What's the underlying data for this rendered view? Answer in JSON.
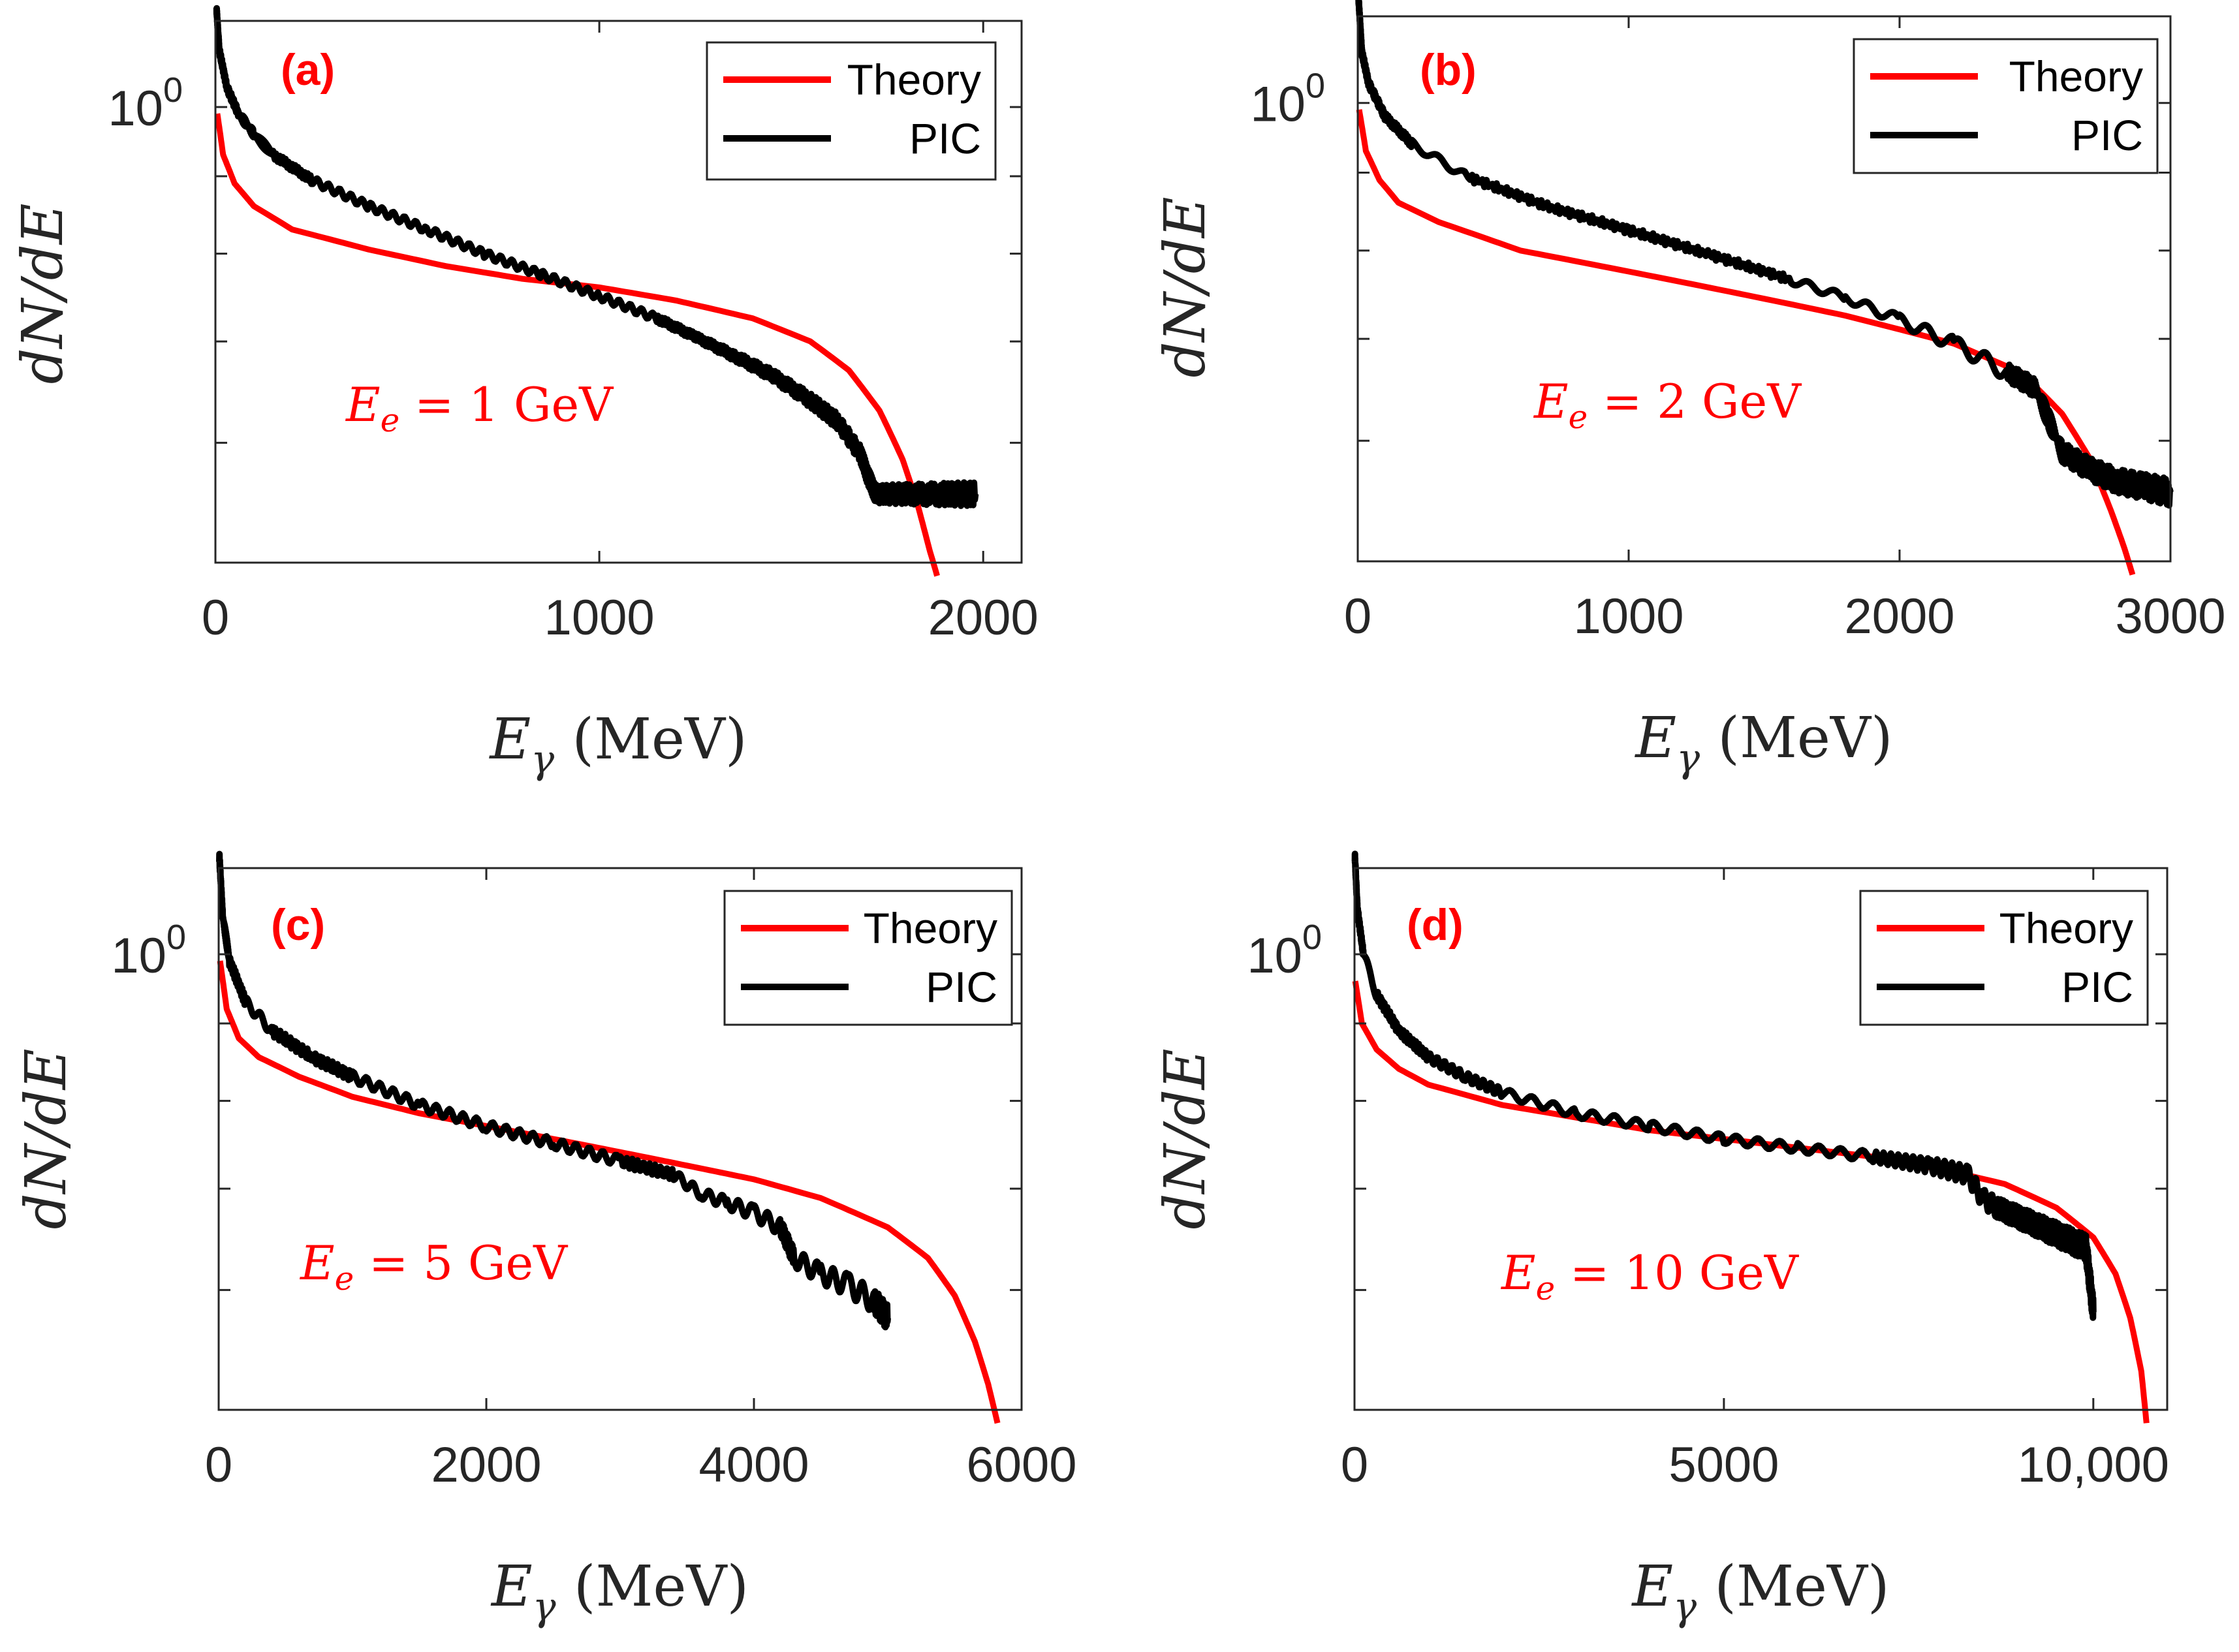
{
  "figure": {
    "label": "Photon spectra dN/dE vs E_gamma: Theory vs PIC for four electron energies",
    "colors": {
      "theory": "#ff0000",
      "pic": "#000000",
      "axis": "#262626",
      "annotation": "#ff0000"
    }
  },
  "chart_data": [
    {
      "type": "line",
      "panel_label": "(a)",
      "annotation": {
        "main": "E",
        "sub": "e",
        "rest": " = 1 GeV"
      },
      "xlabel": {
        "main": "E",
        "sub": "γ",
        "unit": " (MeV)"
      },
      "ylabel": "dN/dE",
      "y_scale": "log",
      "xlim": [
        0,
        2100
      ],
      "ylim": [
        0.5,
        1.14
      ],
      "x_ticks": [
        0,
        1000,
        2000
      ],
      "x_tick_labels": [
        "0",
        "1000",
        "2000"
      ],
      "y_tick_values": [
        0.5,
        0.6,
        0.7,
        0.8,
        0.9,
        1.0
      ],
      "y_tick_label": {
        "base": "10",
        "exp": "0"
      },
      "y_tick_label_value": 1.0,
      "legend": [
        {
          "name": "Theory"
        },
        {
          "name": "PIC"
        }
      ],
      "legend_position": "top-right",
      "series": [
        {
          "name": "Theory",
          "color": "#ff0000",
          "x": [
            5,
            20,
            50,
            100,
            200,
            400,
            600,
            800,
            1000,
            1200,
            1400,
            1550,
            1650,
            1730,
            1790,
            1830,
            1860,
            1880
          ],
          "y": [
            0.99,
            0.93,
            0.89,
            0.86,
            0.83,
            0.805,
            0.785,
            0.77,
            0.76,
            0.745,
            0.725,
            0.7,
            0.67,
            0.63,
            0.585,
            0.545,
            0.51,
            0.49
          ]
        },
        {
          "name": "PIC",
          "color": "#000000",
          "noise": 0.006,
          "x": [
            3,
            10,
            30,
            60,
            100,
            150,
            250,
            400,
            550,
            700,
            850,
            1000,
            1150,
            1250,
            1350,
            1450,
            1550,
            1620,
            1680,
            1700,
            1720,
            1800,
            1900,
            1980
          ],
          "y": [
            1.16,
            1.09,
            1.03,
            0.99,
            0.96,
            0.93,
            0.895,
            0.86,
            0.83,
            0.8,
            0.775,
            0.75,
            0.725,
            0.705,
            0.685,
            0.665,
            0.64,
            0.62,
            0.59,
            0.57,
            0.555,
            0.555,
            0.555,
            0.555
          ]
        }
      ]
    },
    {
      "type": "line",
      "panel_label": "(b)",
      "annotation": {
        "main": "E",
        "sub": "e",
        "rest": " = 2 GeV"
      },
      "xlabel": {
        "main": "E",
        "sub": "γ",
        "unit": " (MeV)"
      },
      "ylabel": "dN/dE",
      "y_scale": "log",
      "xlim": [
        0,
        3000
      ],
      "ylim": [
        0.5,
        1.14
      ],
      "x_ticks": [
        0,
        1000,
        2000,
        3000
      ],
      "x_tick_labels": [
        "0",
        "1000",
        "2000",
        "3000"
      ],
      "y_tick_values": [
        0.5,
        0.6,
        0.7,
        0.8,
        0.9,
        1.0
      ],
      "y_tick_label": {
        "base": "10",
        "exp": "0"
      },
      "y_tick_label_value": 1.0,
      "legend": [
        {
          "name": "Theory"
        },
        {
          "name": "PIC"
        }
      ],
      "legend_position": "top-right",
      "series": [
        {
          "name": "Theory",
          "color": "#ff0000",
          "x": [
            5,
            30,
            80,
            150,
            300,
            600,
            1000,
            1400,
            1800,
            2200,
            2450,
            2600,
            2700,
            2780,
            2830,
            2860
          ],
          "y": [
            0.99,
            0.93,
            0.89,
            0.86,
            0.835,
            0.8,
            0.775,
            0.75,
            0.725,
            0.695,
            0.665,
            0.625,
            0.585,
            0.54,
            0.51,
            0.49
          ]
        },
        {
          "name": "PIC",
          "color": "#000000",
          "noise": 0.006,
          "x": [
            3,
            15,
            40,
            100,
            200,
            400,
            700,
            1000,
            1300,
            1600,
            1800,
            2000,
            2200,
            2400,
            2500,
            2550,
            2600,
            2700,
            2800,
            2900,
            3000
          ],
          "y": [
            1.17,
            1.08,
            1.03,
            0.98,
            0.94,
            0.895,
            0.855,
            0.825,
            0.795,
            0.765,
            0.745,
            0.72,
            0.695,
            0.665,
            0.65,
            0.62,
            0.59,
            0.575,
            0.565,
            0.56,
            0.555
          ]
        }
      ]
    },
    {
      "type": "line",
      "panel_label": "(c)",
      "annotation": {
        "main": "E",
        "sub": "e",
        "rest": " = 5 GeV"
      },
      "xlabel": {
        "main": "E",
        "sub": "γ",
        "unit": " (MeV)"
      },
      "ylabel": "dN/dE",
      "y_scale": "log",
      "xlim": [
        0,
        6000
      ],
      "ylim": [
        0.5,
        1.14
      ],
      "x_ticks": [
        0,
        2000,
        4000,
        6000
      ],
      "x_tick_labels": [
        "0",
        "2000",
        "4000",
        "6000"
      ],
      "y_tick_values": [
        0.5,
        0.6,
        0.7,
        0.8,
        0.9,
        1.0
      ],
      "y_tick_label": {
        "base": "10",
        "exp": "0"
      },
      "y_tick_label_value": 1.0,
      "legend": [
        {
          "name": "Theory"
        },
        {
          "name": "PIC"
        }
      ],
      "legend_position": "top-right",
      "series": [
        {
          "name": "Theory",
          "color": "#ff0000",
          "x": [
            10,
            60,
            150,
            300,
            600,
            1000,
            1500,
            2000,
            2500,
            3000,
            3500,
            4000,
            4500,
            5000,
            5300,
            5500,
            5650,
            5750,
            5820
          ],
          "y": [
            0.99,
            0.92,
            0.88,
            0.855,
            0.83,
            0.805,
            0.785,
            0.77,
            0.755,
            0.74,
            0.725,
            0.71,
            0.69,
            0.66,
            0.63,
            0.595,
            0.555,
            0.52,
            0.49
          ]
        },
        {
          "name": "PIC",
          "color": "#000000",
          "noise": 0.008,
          "x": [
            5,
            30,
            80,
            200,
            400,
            700,
            1000,
            1500,
            2000,
            2500,
            3000,
            3400,
            3600,
            3800,
            4000,
            4200,
            4300,
            4500,
            4700,
            4900,
            5000
          ],
          "y": [
            1.16,
            1.06,
            0.99,
            0.93,
            0.89,
            0.855,
            0.83,
            0.795,
            0.77,
            0.75,
            0.73,
            0.715,
            0.695,
            0.685,
            0.675,
            0.66,
            0.63,
            0.615,
            0.605,
            0.59,
            0.575
          ]
        }
      ]
    },
    {
      "type": "line",
      "panel_label": "(d)",
      "annotation": {
        "main": "E",
        "sub": "e",
        "rest": " = 10 GeV"
      },
      "xlabel": {
        "main": "E",
        "sub": "γ",
        "unit": " (MeV)"
      },
      "ylabel": "dN/dE",
      "y_scale": "log",
      "xlim": [
        0,
        11000
      ],
      "ylim": [
        0.5,
        1.14
      ],
      "x_ticks": [
        0,
        5000,
        10000
      ],
      "x_tick_labels": [
        "0",
        "5000",
        "10,000"
      ],
      "y_tick_values": [
        0.5,
        0.6,
        0.7,
        0.8,
        0.9,
        1.0
      ],
      "y_tick_label": {
        "base": "10",
        "exp": "0"
      },
      "y_tick_label_value": 1.0,
      "legend": [
        {
          "name": "Theory"
        },
        {
          "name": "PIC"
        }
      ],
      "legend_position": "top-right",
      "series": [
        {
          "name": "Theory",
          "color": "#ff0000",
          "x": [
            10,
            100,
            300,
            600,
            1000,
            2000,
            3000,
            4000,
            5000,
            6000,
            7000,
            8000,
            8800,
            9500,
            10000,
            10300,
            10500,
            10650,
            10720
          ],
          "y": [
            0.96,
            0.9,
            0.865,
            0.84,
            0.82,
            0.795,
            0.78,
            0.765,
            0.755,
            0.745,
            0.735,
            0.72,
            0.705,
            0.68,
            0.65,
            0.615,
            0.575,
            0.53,
            0.49
          ]
        },
        {
          "name": "PIC",
          "color": "#000000",
          "noise": 0.007,
          "x": [
            5,
            40,
            120,
            300,
            600,
            1000,
            1500,
            2000,
            3000,
            4000,
            5000,
            6000,
            7000,
            7800,
            8300,
            8500,
            8700,
            9000,
            9300,
            9600,
            9900,
            10000
          ],
          "y": [
            1.16,
            1.07,
            1.0,
            0.94,
            0.89,
            0.855,
            0.83,
            0.81,
            0.785,
            0.77,
            0.755,
            0.745,
            0.735,
            0.725,
            0.715,
            0.69,
            0.68,
            0.67,
            0.66,
            0.65,
            0.64,
            0.58
          ]
        }
      ]
    }
  ]
}
